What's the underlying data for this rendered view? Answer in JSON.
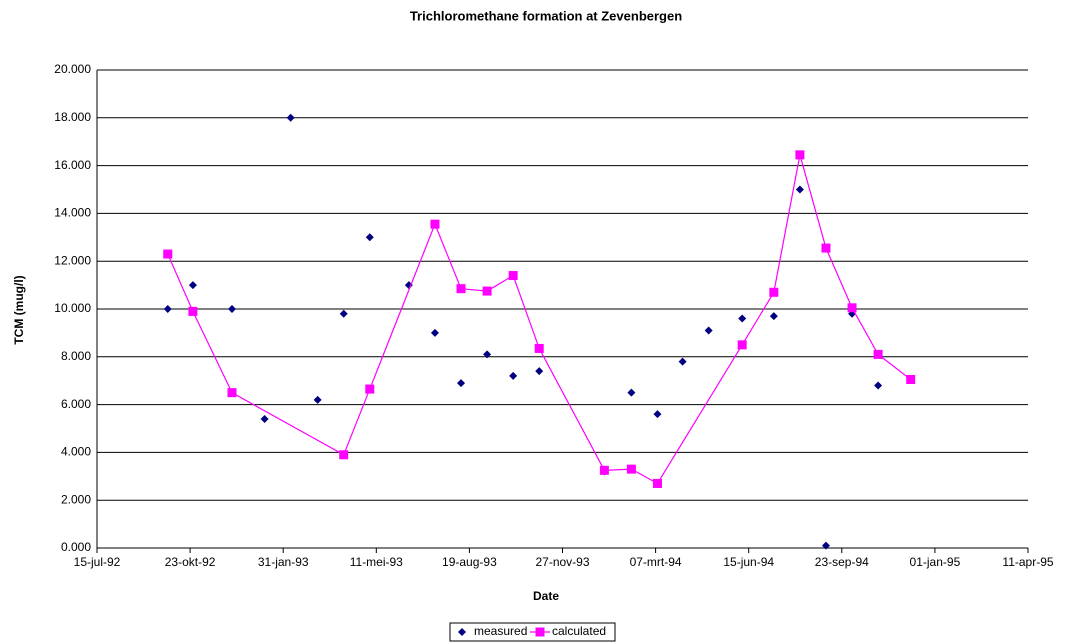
{
  "chart_data": {
    "type": "line",
    "title": "Trichloromethane formation at Zevenbergen",
    "x_label": "Date",
    "y_label": "TCM (mug/l)",
    "xlim": [
      "1992-07-15",
      "1995-04-11"
    ],
    "xticks": [
      {
        "value": "1992-07-15",
        "label": "15-jul-92"
      },
      {
        "value": "1992-10-23",
        "label": "23-okt-92"
      },
      {
        "value": "1993-01-31",
        "label": "31-jan-93"
      },
      {
        "value": "1993-05-11",
        "label": "11-mei-93"
      },
      {
        "value": "1993-08-19",
        "label": "19-aug-93"
      },
      {
        "value": "1993-11-27",
        "label": "27-nov-93"
      },
      {
        "value": "1994-03-07",
        "label": "07-mrt-94"
      },
      {
        "value": "1994-06-15",
        "label": "15-jun-94"
      },
      {
        "value": "1994-09-23",
        "label": "23-sep-94"
      },
      {
        "value": "1995-01-01",
        "label": "01-jan-95"
      },
      {
        "value": "1995-04-11",
        "label": "11-apr-95"
      }
    ],
    "ylim": [
      0,
      20
    ],
    "yticks": [
      {
        "value": 0,
        "label": "0.000"
      },
      {
        "value": 2,
        "label": "2.000"
      },
      {
        "value": 4,
        "label": "4.000"
      },
      {
        "value": 6,
        "label": "6.000"
      },
      {
        "value": 8,
        "label": "8.000"
      },
      {
        "value": 10,
        "label": "10.000"
      },
      {
        "value": 12,
        "label": "12.000"
      },
      {
        "value": 14,
        "label": "14.000"
      },
      {
        "value": 16,
        "label": "16.000"
      },
      {
        "value": 18,
        "label": "18.000"
      },
      {
        "value": 20,
        "label": "20.000"
      }
    ],
    "grid": true,
    "legend": "bottom",
    "series": [
      {
        "name": "measured",
        "color": "#000080",
        "marker": "diamond",
        "line": false,
        "x": [
          "1992-09-29",
          "1992-10-26",
          "1992-12-07",
          "1993-01-11",
          "1993-02-08",
          "1993-03-09",
          "1993-04-06",
          "1993-05-04",
          "1993-06-15",
          "1993-07-13",
          "1993-08-10",
          "1993-09-07",
          "1993-10-05",
          "1993-11-02",
          "1994-01-11",
          "1994-02-09",
          "1994-03-09",
          "1994-04-05",
          "1994-05-03",
          "1994-06-08",
          "1994-07-12",
          "1994-08-09",
          "1994-09-06",
          "1994-10-04",
          "1994-11-01"
        ],
        "values": [
          10.0,
          11.0,
          10.0,
          5.4,
          18.0,
          6.2,
          9.8,
          13.0,
          11.0,
          9.0,
          6.9,
          8.1,
          7.2,
          7.4,
          3.2,
          6.5,
          5.6,
          7.8,
          9.1,
          9.6,
          9.7,
          15.0,
          0.1,
          9.8,
          6.8
        ]
      },
      {
        "name": "calculated",
        "color": "#ff00ff",
        "marker": "square",
        "line": true,
        "x": [
          "1992-09-29",
          "1992-10-26",
          "1992-12-07",
          "1993-04-06",
          "1993-05-04",
          "1993-07-13",
          "1993-08-10",
          "1993-09-07",
          "1993-10-05",
          "1993-11-02",
          "1994-01-11",
          "1994-02-09",
          "1994-03-09",
          "1994-06-08",
          "1994-07-12",
          "1994-08-09",
          "1994-09-06",
          "1994-10-04",
          "1994-11-01",
          "1994-12-06"
        ],
        "values": [
          12.3,
          9.9,
          6.5,
          3.9,
          6.65,
          13.55,
          10.85,
          10.75,
          11.4,
          8.35,
          3.25,
          3.3,
          2.7,
          8.5,
          10.7,
          16.45,
          12.55,
          10.05,
          8.1,
          7.05
        ]
      }
    ]
  }
}
